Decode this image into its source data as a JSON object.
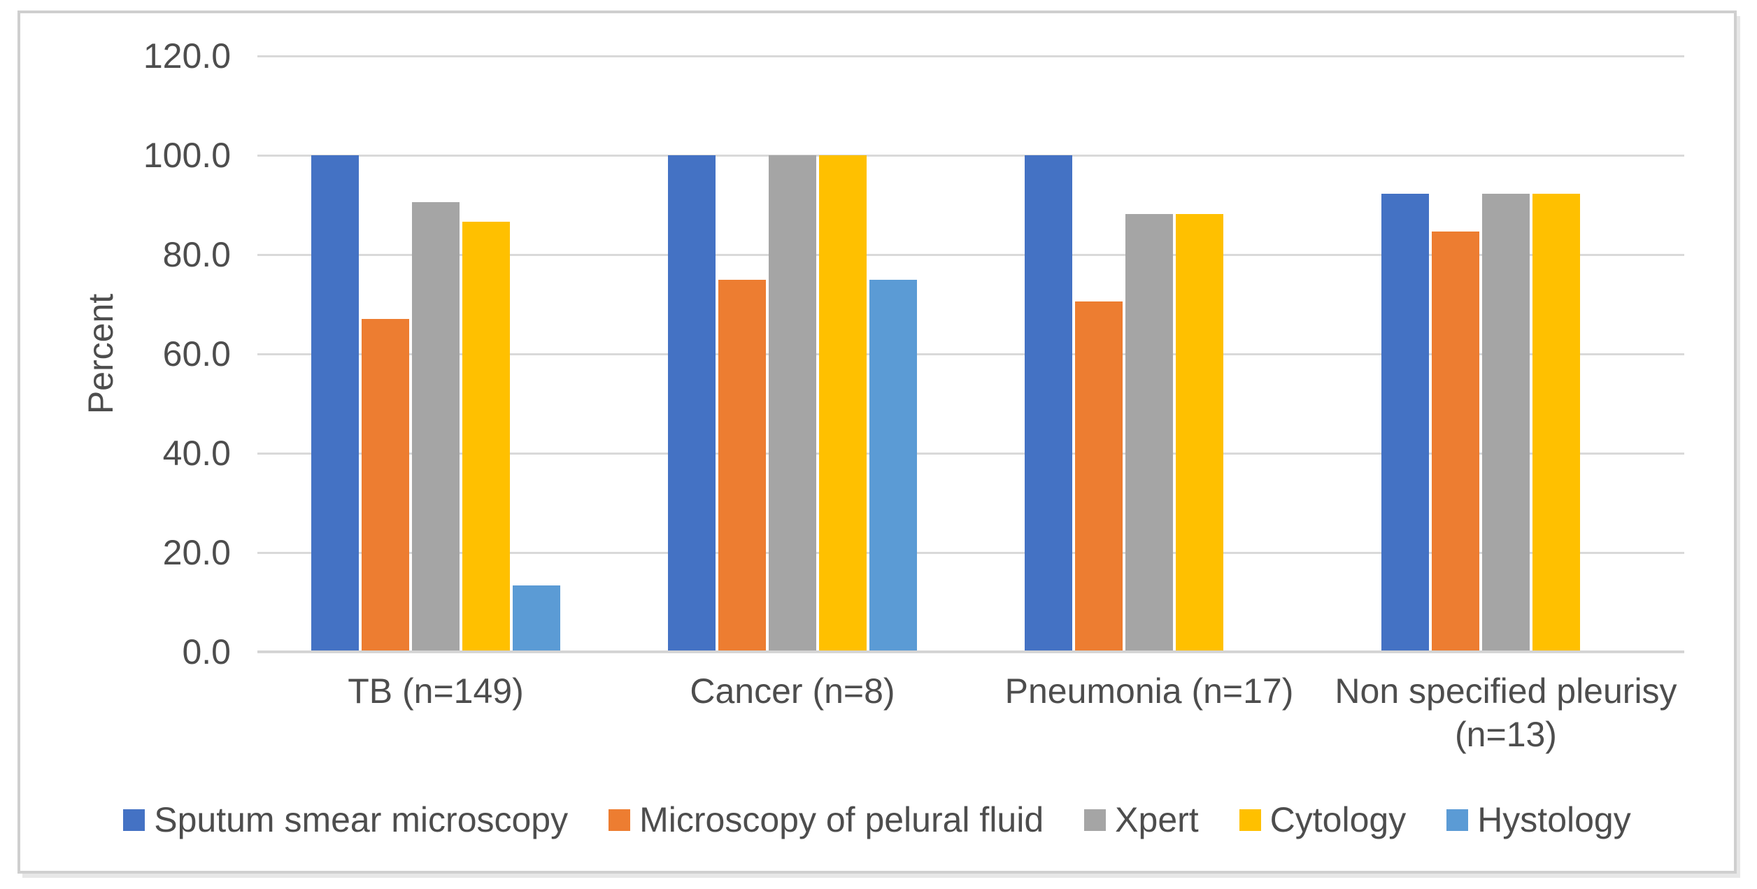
{
  "chart_data": {
    "type": "bar",
    "title": "",
    "xlabel": "",
    "ylabel": "Percent",
    "ylim": [
      0,
      120
    ],
    "ytick_step": 20,
    "ytick_labels": [
      "120.0",
      "100.0",
      "80.0",
      "60.0",
      "40.0",
      "20.0",
      "0.0"
    ],
    "grid": true,
    "legend_position": "bottom",
    "categories": [
      "TB (n=149)",
      "Cancer (n=8)",
      "Pneumonia (n=17)",
      "Non specified pleurisy (n=13)"
    ],
    "series": [
      {
        "name": "Sputum smear microscopy",
        "color": "#4472C4",
        "values": [
          100.0,
          100.0,
          100.0,
          92.3
        ]
      },
      {
        "name": "Microscopy of pelural fluid",
        "color": "#ED7D31",
        "values": [
          67.1,
          75.0,
          70.6,
          84.6
        ]
      },
      {
        "name": "Xpert",
        "color": "#A5A5A5",
        "values": [
          90.6,
          100.0,
          88.2,
          92.3
        ]
      },
      {
        "name": "Cytology",
        "color": "#FFC000",
        "values": [
          86.6,
          100.0,
          88.2,
          92.3
        ]
      },
      {
        "name": "Hystology",
        "color": "#5B9BD5",
        "values": [
          13.4,
          75.0,
          null,
          null
        ]
      }
    ],
    "colors": {
      "gridline": "#d9d9d9",
      "axis_line": "#d4d4d4",
      "text": "#4d4d4d",
      "frame_border": "#cfcfcf"
    }
  }
}
